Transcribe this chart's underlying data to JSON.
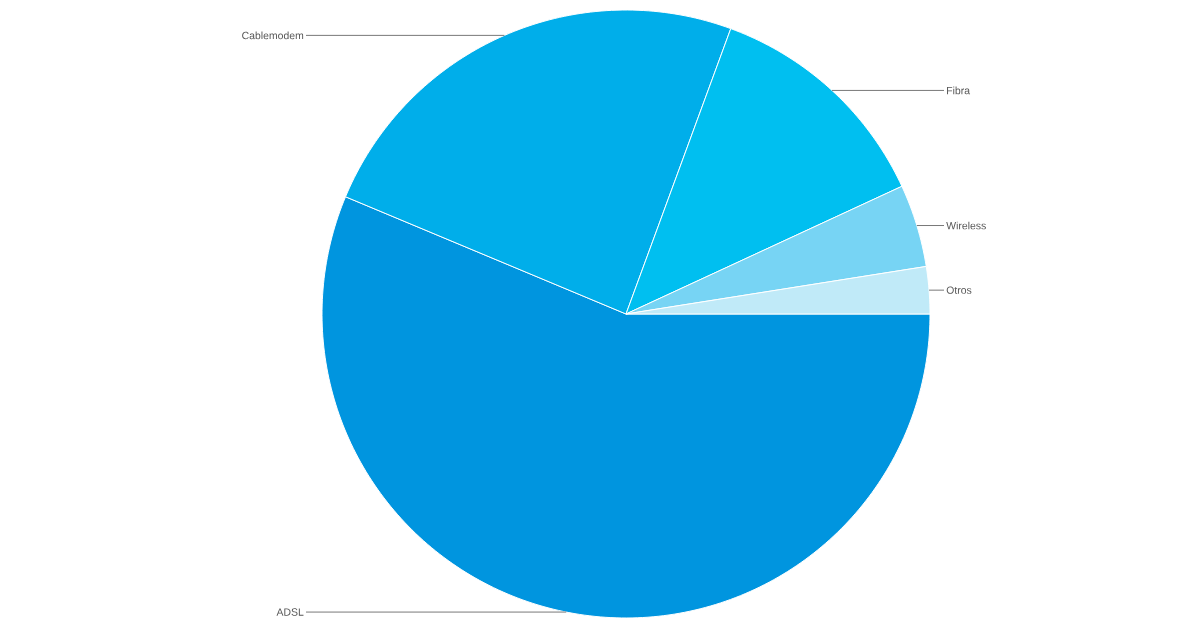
{
  "chart_data": {
    "type": "pie",
    "categories": [
      "ADSL",
      "Cablemodem",
      "Fibra",
      "Wireless",
      "Otros"
    ],
    "values": [
      56.3,
      24.3,
      12.5,
      4.4,
      2.5
    ],
    "colors": [
      "#0095df",
      "#00aeea",
      "#00bff0",
      "#77d4f4",
      "#c0eaf8"
    ]
  }
}
